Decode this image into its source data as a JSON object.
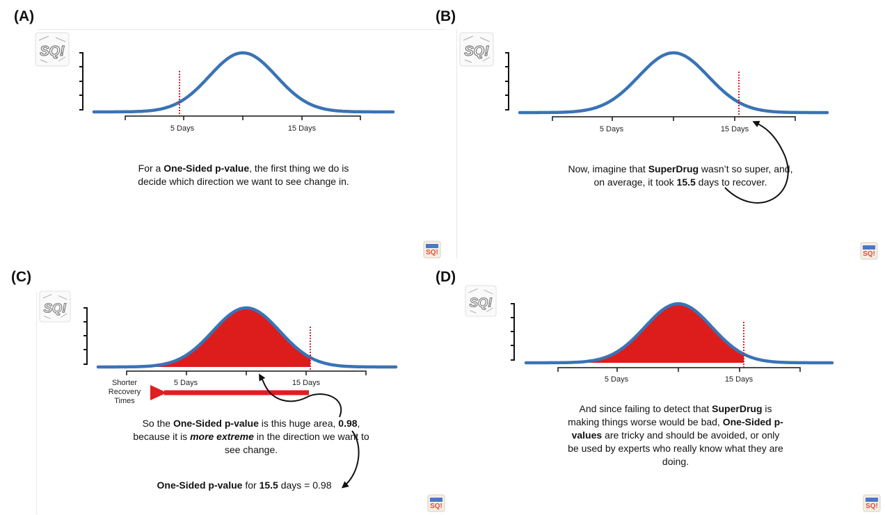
{
  "panels": {
    "a": {
      "label": "(A)",
      "ticks": [
        "5 Days",
        "15 Days"
      ],
      "caption": {
        "pre": "For a ",
        "bold": "One-Sided p-value",
        "post": ", the first thing we do is decide which direction we want to see change in."
      }
    },
    "b": {
      "label": "(B)",
      "ticks": [
        "5 Days",
        "15 Days"
      ],
      "caption": {
        "pre": "Now, imagine that ",
        "bold1": "SuperDrug",
        "mid": " wasn’t so super, and, on average, it took ",
        "bold2": "15.5",
        "post": " days to recover."
      }
    },
    "c": {
      "label": "(C)",
      "ticks": [
        "5 Days",
        "15 Days"
      ],
      "arrow_label": "Shorter Recovery Times",
      "caption": {
        "pre": "So the ",
        "bold1": "One-Sided p-value",
        "mid": " is this huge area, ",
        "bold2": "0.98",
        "mid2": ", because it is ",
        "bolditalic": "more extreme",
        "post": " in the direction we want to see change."
      },
      "result": {
        "bold1": "One-Sided p-value",
        "mid": " for ",
        "bold2": "15.5",
        "post": " days = 0.98"
      }
    },
    "d": {
      "label": "(D)",
      "ticks": [
        "5 Days",
        "15 Days"
      ],
      "caption": {
        "pre": "And since failing to detect that ",
        "bold1": "SuperDrug",
        "mid": " is making things worse would be bad, ",
        "bold2": "One-Sided p-values",
        "post": " are tricky and should be avoided, or only be used by experts who really know what they are doing."
      }
    }
  },
  "logo_text": "SQ!",
  "colors": {
    "curve": "#3a73b5",
    "area": "#dd1c1c",
    "threshold": "#c62828",
    "axis": "#111111",
    "arrow": "#e01e1e"
  }
}
